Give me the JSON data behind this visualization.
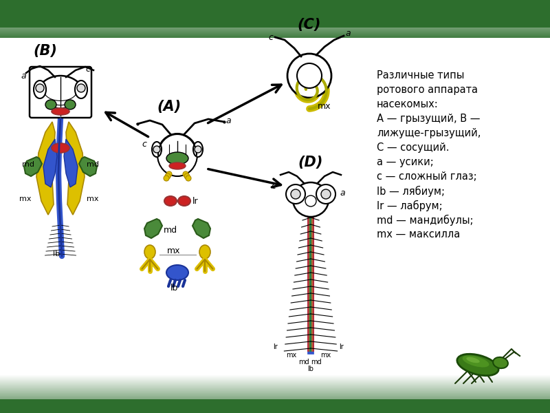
{
  "legend_text_lines": [
    "Различные типы",
    "ротового аппарата",
    "насекомых:",
    "А — грызущий, В —",
    "лижуще-грызущий,",
    "С — сосущий.",
    "а — усики;",
    "с — сложный глаз;",
    "lb — лябиум;",
    "lr — лабрум;",
    "md — мандибулы;",
    "mx — максилла"
  ],
  "label_A": "(A)",
  "label_B": "(B)",
  "label_C": "(C)",
  "label_D": "(D)",
  "green_dark": "#2d6e2d",
  "green_mid": "#4a8a3a",
  "green_light": "#5aaa4a",
  "blue_dark": "#1a3399",
  "blue_mid": "#3355cc",
  "blue_light": "#4466dd",
  "red_dark": "#993333",
  "red_mid": "#cc2222",
  "yellow_dark": "#aa8800",
  "yellow_mid": "#ddc000",
  "fig_width": 8.0,
  "fig_height": 6.0,
  "dpi": 100
}
